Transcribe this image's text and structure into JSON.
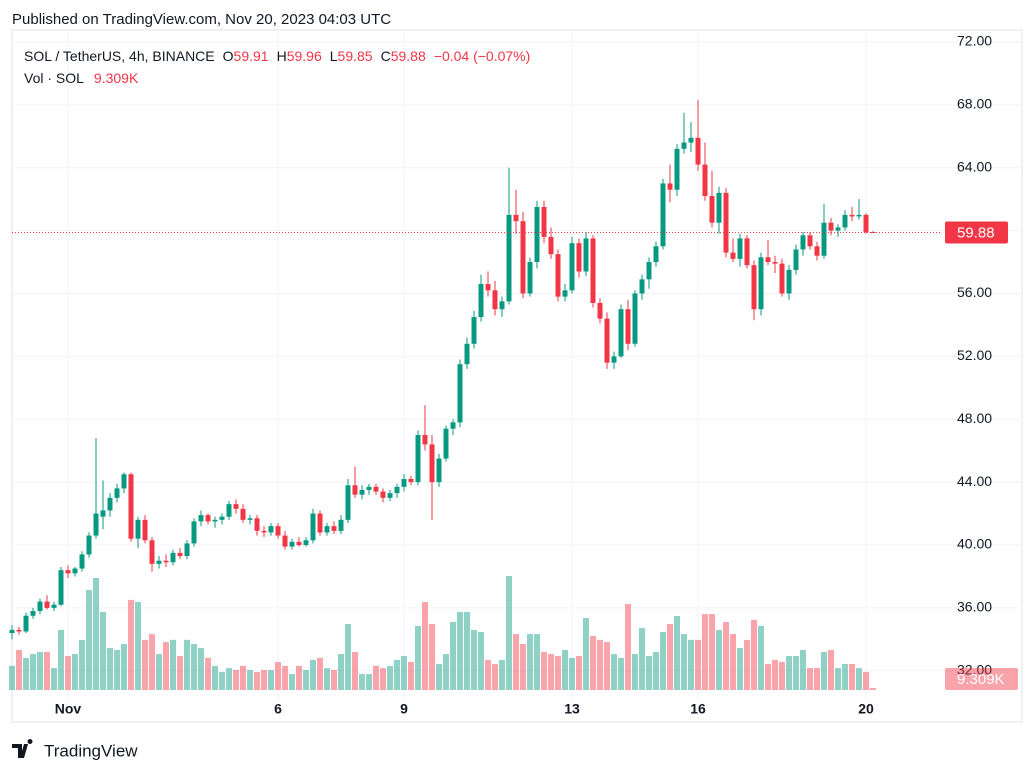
{
  "header": "Published on TradingView.com, Nov 20, 2023 04:03 UTC",
  "footer": "TradingView",
  "chart_data": {
    "type": "candlestick",
    "legend": {
      "symbol": "SOL / TetherUS, 4h, BINANCE",
      "o": "O",
      "h": "H",
      "l": "L",
      "c": "C",
      "change": "−0.04 (−0.07%)",
      "volume_name": "Vol · SOL"
    },
    "last_volume_label": "9.309K",
    "up_color": "#089981",
    "down_color": "#f23645",
    "grid": true,
    "ylim": [
      30.14,
      72.76
    ],
    "yticks": [
      {
        "value": 32,
        "label": "32.00"
      },
      {
        "value": 36,
        "label": "36.00"
      },
      {
        "value": 40,
        "label": "40.00"
      },
      {
        "value": 44,
        "label": "44.00"
      },
      {
        "value": 48,
        "label": "48.00"
      },
      {
        "value": 52,
        "label": "52.00"
      },
      {
        "value": 56,
        "label": "56.00"
      },
      {
        "value": 60,
        "label": "60.00"
      },
      {
        "value": 64,
        "label": "64.00"
      },
      {
        "value": 68,
        "label": "68.00"
      },
      {
        "value": 72,
        "label": "72.00"
      }
    ],
    "categories": [
      null,
      null,
      null,
      null,
      null,
      null,
      null,
      null,
      "Nov",
      null,
      null,
      null,
      null,
      null,
      null,
      null,
      null,
      null,
      null,
      null,
      null,
      null,
      null,
      null,
      null,
      null,
      null,
      null,
      null,
      null,
      null,
      null,
      null,
      null,
      null,
      null,
      null,
      null,
      "6",
      null,
      null,
      null,
      null,
      null,
      null,
      null,
      null,
      null,
      null,
      null,
      null,
      null,
      null,
      null,
      null,
      null,
      "9",
      null,
      null,
      null,
      null,
      null,
      null,
      null,
      null,
      null,
      null,
      null,
      null,
      null,
      null,
      null,
      null,
      null,
      null,
      null,
      null,
      null,
      null,
      null,
      "13",
      null,
      null,
      null,
      null,
      null,
      null,
      null,
      null,
      null,
      null,
      null,
      null,
      null,
      null,
      null,
      null,
      null,
      "16",
      null,
      null,
      null,
      null,
      null,
      null,
      null,
      null,
      null,
      null,
      null,
      null,
      null,
      null,
      null,
      null,
      null,
      null,
      null,
      null,
      null,
      null,
      null,
      "20",
      null
    ],
    "open": [
      34.4,
      34.6,
      34.5,
      35.5,
      35.8,
      36.4,
      36.0,
      36.2,
      38.4,
      38.2,
      38.5,
      39.4,
      40.6,
      41.8,
      42.2,
      43.0,
      43.6,
      44.5,
      40.4,
      41.6,
      40.3,
      38.8,
      39.0,
      38.9,
      39.5,
      39.3,
      40.1,
      41.5,
      41.9,
      41.5,
      41.6,
      41.8,
      42.6,
      42.3,
      41.6,
      41.7,
      40.9,
      40.8,
      41.2,
      40.6,
      39.9,
      40.2,
      40.0,
      40.3,
      42.0,
      40.8,
      41.2,
      40.9,
      41.6,
      43.8,
      43.2,
      43.5,
      43.7,
      43.4,
      43.0,
      43.3,
      43.7,
      44.2,
      44.0,
      47.0,
      46.4,
      44.0,
      45.5,
      47.4,
      47.8,
      51.5,
      52.8,
      54.5,
      56.6,
      56.2,
      55.0,
      55.5,
      61.0,
      60.6,
      56.0,
      58.0,
      61.5,
      59.6,
      58.5,
      55.8,
      56.2,
      59.2,
      57.4,
      59.5,
      55.4,
      54.4,
      51.6,
      52.0,
      55.0,
      52.8,
      56.0,
      56.9,
      58.0,
      59.0,
      63.0,
      62.6,
      65.2,
      65.6,
      65.9,
      64.2,
      62.2,
      60.5,
      62.4,
      58.6,
      58.2,
      59.5,
      57.8,
      55.0,
      58.3,
      58.0,
      57.9,
      56.0,
      57.5,
      58.8,
      59.7,
      59.0,
      58.4,
      60.5,
      60.0,
      60.2,
      61.0,
      60.9,
      61.0,
      59.91
    ],
    "high": [
      34.9,
      34.8,
      35.7,
      36.0,
      36.6,
      36.8,
      36.4,
      38.6,
      38.7,
      38.6,
      39.6,
      40.8,
      46.8,
      44.1,
      43.3,
      43.9,
      44.6,
      44.6,
      41.8,
      41.9,
      40.5,
      39.3,
      39.4,
      39.7,
      39.8,
      40.3,
      41.7,
      42.2,
      42.0,
      41.8,
      42.0,
      42.8,
      42.9,
      42.6,
      41.9,
      41.9,
      41.2,
      41.4,
      41.4,
      40.9,
      40.4,
      40.5,
      40.5,
      42.3,
      42.2,
      41.4,
      41.5,
      41.9,
      44.2,
      45.0,
      43.8,
      43.9,
      43.9,
      43.6,
      43.5,
      43.9,
      44.5,
      44.4,
      47.3,
      48.9,
      47.0,
      45.8,
      47.6,
      48.0,
      51.8,
      53.2,
      54.9,
      57.2,
      57.4,
      56.8,
      55.8,
      64.0,
      62.6,
      61.2,
      58.3,
      61.9,
      61.9,
      60.2,
      58.8,
      56.6,
      59.6,
      59.5,
      59.9,
      59.7,
      55.7,
      54.8,
      52.3,
      55.3,
      55.6,
      56.2,
      57.2,
      58.3,
      59.3,
      63.3,
      64.2,
      65.5,
      67.5,
      66.9,
      68.3,
      65.6,
      63.8,
      62.8,
      62.7,
      59.5,
      59.8,
      59.7,
      58.1,
      58.6,
      59.4,
      58.4,
      58.2,
      57.8,
      59.1,
      59.9,
      59.9,
      59.3,
      61.7,
      60.8,
      60.4,
      61.3,
      61.5,
      62.0,
      61.1,
      59.96
    ],
    "low": [
      34.0,
      34.3,
      34.4,
      35.3,
      35.6,
      35.9,
      35.8,
      36.1,
      37.9,
      38.0,
      38.3,
      39.2,
      40.4,
      41.0,
      41.8,
      42.7,
      43.3,
      40.2,
      39.8,
      40.1,
      38.3,
      38.5,
      38.6,
      38.7,
      39.1,
      39.1,
      39.9,
      41.2,
      41.3,
      41.1,
      41.3,
      41.6,
      42.0,
      41.4,
      41.3,
      40.6,
      40.5,
      40.6,
      40.4,
      39.7,
      39.7,
      39.9,
      39.9,
      40.1,
      40.6,
      40.6,
      40.7,
      40.7,
      41.4,
      43.0,
      42.9,
      43.2,
      43.2,
      42.7,
      42.8,
      43.0,
      43.4,
      43.8,
      43.8,
      46.0,
      41.6,
      43.7,
      45.3,
      47.0,
      47.5,
      51.2,
      52.5,
      54.2,
      55.8,
      54.6,
      54.5,
      55.3,
      59.8,
      55.7,
      55.8,
      57.6,
      59.2,
      58.2,
      55.5,
      55.5,
      56.0,
      57.0,
      57.1,
      55.1,
      54.1,
      51.2,
      51.2,
      51.9,
      52.4,
      52.6,
      55.6,
      56.3,
      57.7,
      58.8,
      61.8,
      62.2,
      64.9,
      65.0,
      63.8,
      61.9,
      60.2,
      59.8,
      58.3,
      58.0,
      57.7,
      57.6,
      54.3,
      54.6,
      57.8,
      57.3,
      55.8,
      55.6,
      57.2,
      58.4,
      58.8,
      58.1,
      58.2,
      59.7,
      59.6,
      60.0,
      60.6,
      60.7,
      59.8,
      59.85
    ],
    "close": [
      34.6,
      34.5,
      35.5,
      35.8,
      36.4,
      36.0,
      36.2,
      38.4,
      38.2,
      38.5,
      39.4,
      40.6,
      42.0,
      42.2,
      43.0,
      43.6,
      44.5,
      40.4,
      41.6,
      40.3,
      38.8,
      39.0,
      38.9,
      39.5,
      39.3,
      40.1,
      41.5,
      41.9,
      41.5,
      41.6,
      41.8,
      42.6,
      42.3,
      41.6,
      41.7,
      40.9,
      40.8,
      41.2,
      40.6,
      39.9,
      40.2,
      40.0,
      40.3,
      42.0,
      40.8,
      41.2,
      40.9,
      41.6,
      43.8,
      43.2,
      43.5,
      43.7,
      43.4,
      43.0,
      43.3,
      43.7,
      44.2,
      44.0,
      47.0,
      46.4,
      44.0,
      45.5,
      47.4,
      47.8,
      51.5,
      52.8,
      54.5,
      56.6,
      56.2,
      55.0,
      55.5,
      61.0,
      60.6,
      56.0,
      58.0,
      61.5,
      59.6,
      58.5,
      55.8,
      56.2,
      59.2,
      57.4,
      59.5,
      55.4,
      54.4,
      51.6,
      52.0,
      55.0,
      52.8,
      56.0,
      56.9,
      58.0,
      59.0,
      63.0,
      62.6,
      65.2,
      65.6,
      65.9,
      64.2,
      62.2,
      60.5,
      62.4,
      58.6,
      58.2,
      59.5,
      57.8,
      55.0,
      58.3,
      58.0,
      57.9,
      56.0,
      57.5,
      58.8,
      59.7,
      59.0,
      58.4,
      60.5,
      60.0,
      60.2,
      61.0,
      60.9,
      61.0,
      59.9,
      59.88
    ],
    "volume": [
      112,
      186,
      149,
      167,
      177,
      177,
      102,
      279,
      158,
      167,
      233,
      465,
      521,
      363,
      195,
      186,
      214,
      419,
      409,
      233,
      260,
      167,
      223,
      233,
      158,
      233,
      214,
      195,
      149,
      112,
      84,
      102,
      93,
      112,
      93,
      84,
      93,
      93,
      130,
      112,
      74,
      112,
      93,
      140,
      149,
      102,
      93,
      167,
      307,
      177,
      74,
      74,
      112,
      102,
      112,
      140,
      158,
      130,
      298,
      409,
      307,
      121,
      167,
      316,
      363,
      363,
      279,
      270,
      140,
      121,
      140,
      530,
      260,
      214,
      260,
      260,
      177,
      167,
      158,
      186,
      149,
      158,
      335,
      251,
      233,
      223,
      167,
      149,
      400,
      167,
      288,
      158,
      177,
      270,
      307,
      344,
      260,
      233,
      233,
      353,
      353,
      279,
      316,
      260,
      195,
      233,
      326,
      298,
      121,
      140,
      130,
      158,
      158,
      186,
      102,
      102,
      177,
      186,
      102,
      121,
      121,
      102,
      84,
      9.309
    ]
  }
}
